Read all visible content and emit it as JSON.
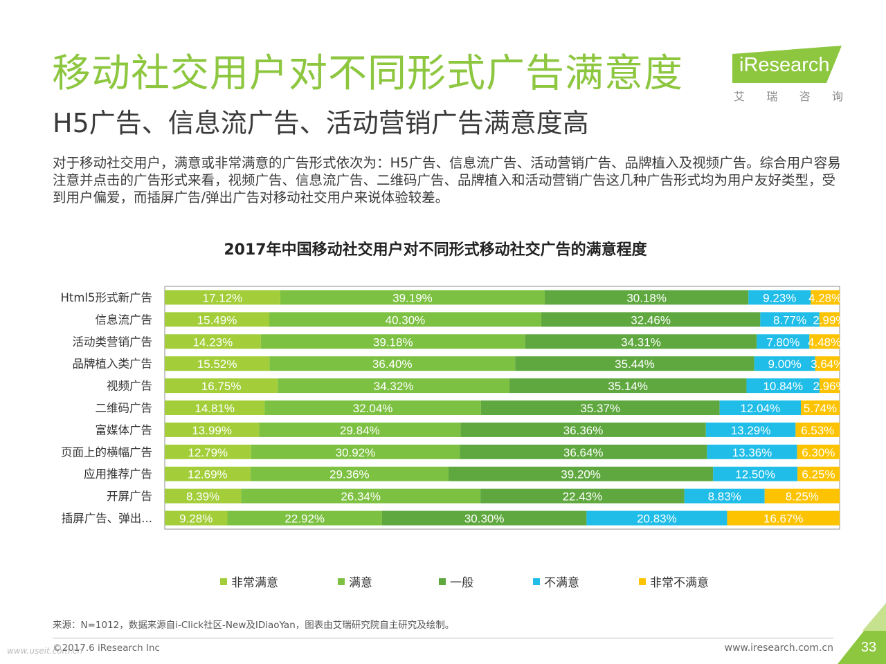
{
  "header": {
    "title": "移动社交用户对不同形式广告满意度",
    "subtitle": "H5广告、信息流广告、活动营销广告满意度高",
    "description": "对于移动社交用户，满意或非常满意的广告形式依次为：H5广告、信息流广告、活动营销广告、品牌植入及视频广告。综合用户容易注意并点击的广告形式来看，视频广告、信息流广告、二维码广告、品牌植入和活动营销广告这几种广告形式均为用户友好类型，受到用户偏爱，而插屏广告/弹出广告对移动社交用户来说体验较差。"
  },
  "logo": {
    "text": "iResearch",
    "chars": [
      "艾",
      "瑞",
      "咨",
      "询"
    ]
  },
  "colors": {
    "title_green": "#8dc63f",
    "series": [
      "#a3ce3a",
      "#7dc142",
      "#5fa83f",
      "#1fbde8",
      "#fdc300"
    ]
  },
  "chart_data": {
    "type": "bar",
    "orientation": "horizontal",
    "stacked": true,
    "title": "2017年中国移动社交用户对不同形式移动社交广告的满意程度",
    "categories": [
      "Html5形式新广告",
      "信息流广告",
      "活动类营销广告",
      "品牌植入类广告",
      "视频广告",
      "二维码广告",
      "富媒体广告",
      "页面上的横幅广告",
      "应用推荐广告",
      "开屏广告",
      "插屏广告、弹出..."
    ],
    "series": [
      {
        "name": "非常满意",
        "values": [
          17.12,
          15.49,
          14.23,
          15.52,
          16.75,
          14.81,
          13.99,
          12.79,
          12.69,
          8.39,
          9.28
        ]
      },
      {
        "name": "满意",
        "values": [
          39.19,
          40.3,
          39.18,
          36.4,
          34.32,
          32.04,
          29.84,
          30.92,
          29.36,
          26.34,
          22.92
        ]
      },
      {
        "name": "一般",
        "values": [
          30.18,
          32.46,
          34.31,
          35.44,
          35.14,
          35.37,
          36.36,
          36.64,
          39.2,
          22.43,
          30.3
        ]
      },
      {
        "name": "不满意",
        "values": [
          9.23,
          8.77,
          7.8,
          9.0,
          10.84,
          12.04,
          13.29,
          13.36,
          12.5,
          8.83,
          20.83
        ]
      },
      {
        "name": "非常不满意",
        "values": [
          4.28,
          2.99,
          4.48,
          3.64,
          2.96,
          5.74,
          6.53,
          6.3,
          6.25,
          8.25,
          16.67
        ]
      }
    ],
    "unit": "%",
    "legend_position": "bottom"
  },
  "footer": {
    "source": "来源：N=1012，数据来源自i-Click社区-New及IDiaoYan，图表由艾瑞研究院自主研究及绘制。",
    "copyright": "©2017.6 iResearch Inc",
    "website": "www.iresearch.com.cn",
    "page_number": "33",
    "watermark": "www.useit.com.cn"
  }
}
